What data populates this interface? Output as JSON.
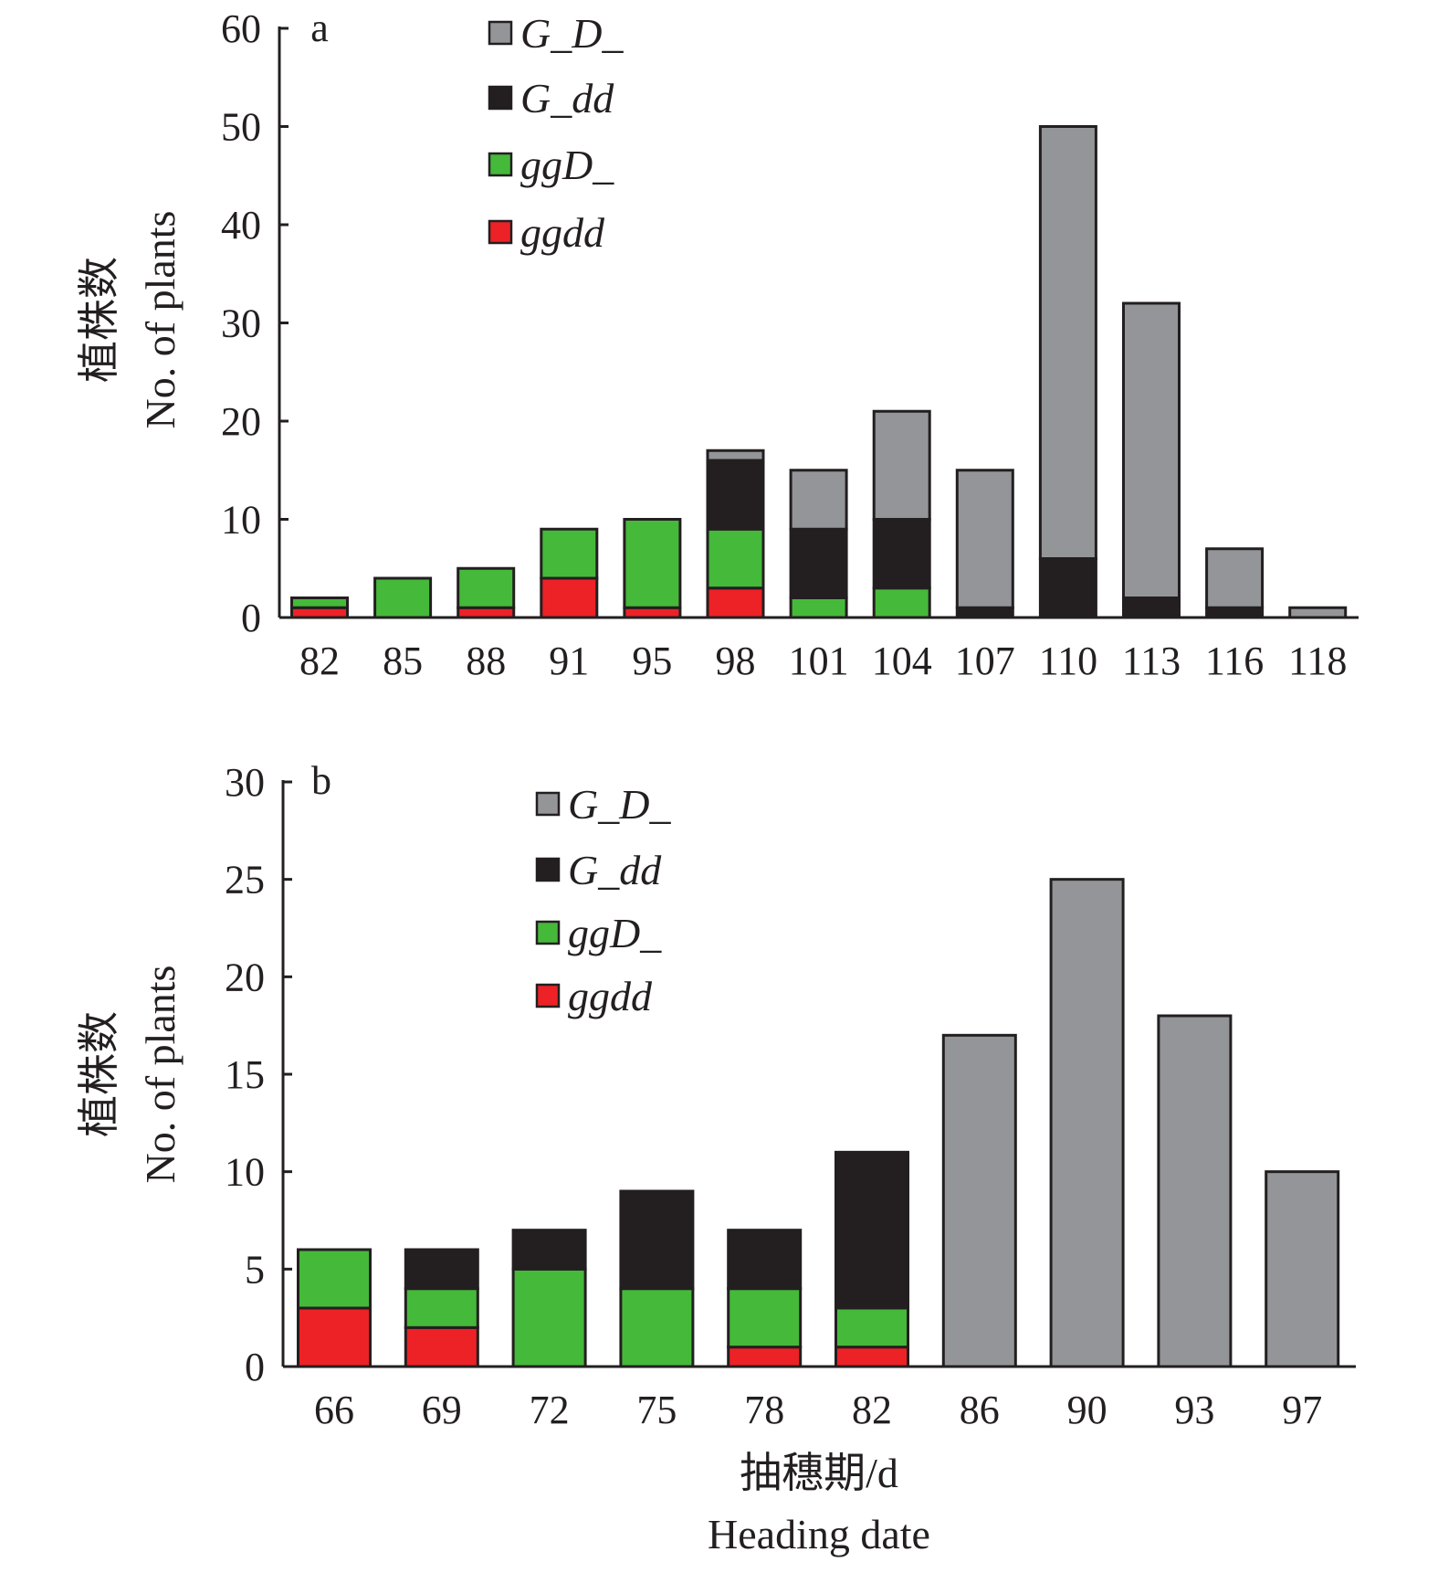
{
  "colors": {
    "G_D_": "#939598",
    "G_dd": "#231f20",
    "ggD_": "#45b93a",
    "ggdd": "#ec2227",
    "stroke": "#231f20"
  },
  "x_label_cn": "抽穗期/d",
  "x_label_en": "Heading date",
  "chart_data": [
    {
      "type": "bar",
      "stacked": true,
      "panel_label": "a",
      "ylabel_cn": "植株数",
      "ylabel_en": "No. of plants",
      "ylim": [
        0,
        60
      ],
      "yticks": [
        0,
        10,
        20,
        30,
        40,
        50,
        60
      ],
      "legend_position": "top-left",
      "categories": [
        "82",
        "85",
        "88",
        "91",
        "95",
        "98",
        "101",
        "104",
        "107",
        "110",
        "113",
        "116",
        "118"
      ],
      "series": [
        {
          "name": "ggdd",
          "key": "ggdd",
          "values": [
            1,
            0,
            1,
            4,
            1,
            3,
            0,
            0,
            0,
            0,
            0,
            0,
            0
          ]
        },
        {
          "name": "ggD_",
          "key": "ggD_",
          "values": [
            1,
            4,
            4,
            5,
            9,
            6,
            2,
            3,
            0,
            0,
            0,
            0,
            0
          ]
        },
        {
          "name": "G_dd",
          "key": "G_dd",
          "values": [
            0,
            0,
            0,
            0,
            0,
            7,
            7,
            7,
            1,
            6,
            2,
            1,
            0
          ]
        },
        {
          "name": "G_D_",
          "key": "G_D_",
          "values": [
            0,
            0,
            0,
            0,
            0,
            1,
            6,
            11,
            14,
            44,
            30,
            6,
            1
          ]
        }
      ]
    },
    {
      "type": "bar",
      "stacked": true,
      "panel_label": "b",
      "ylabel_cn": "植株数",
      "ylabel_en": "No. of plants",
      "ylim": [
        0,
        30
      ],
      "yticks": [
        0,
        5,
        10,
        15,
        20,
        25,
        30
      ],
      "legend_position": "top-left",
      "categories": [
        "66",
        "69",
        "72",
        "75",
        "78",
        "82",
        "86",
        "90",
        "93",
        "97"
      ],
      "series": [
        {
          "name": "ggdd",
          "key": "ggdd",
          "values": [
            3,
            2,
            0,
            0,
            1,
            1,
            0,
            0,
            0,
            0
          ]
        },
        {
          "name": "ggD_",
          "key": "ggD_",
          "values": [
            3,
            2,
            5,
            4,
            3,
            2,
            0,
            0,
            0,
            0
          ]
        },
        {
          "name": "G_dd",
          "key": "G_dd",
          "values": [
            0,
            2,
            2,
            5,
            3,
            8,
            0,
            0,
            0,
            0
          ]
        },
        {
          "name": "G_D_",
          "key": "G_D_",
          "values": [
            0,
            0,
            0,
            0,
            0,
            0,
            17,
            25,
            18,
            10
          ]
        }
      ]
    }
  ]
}
